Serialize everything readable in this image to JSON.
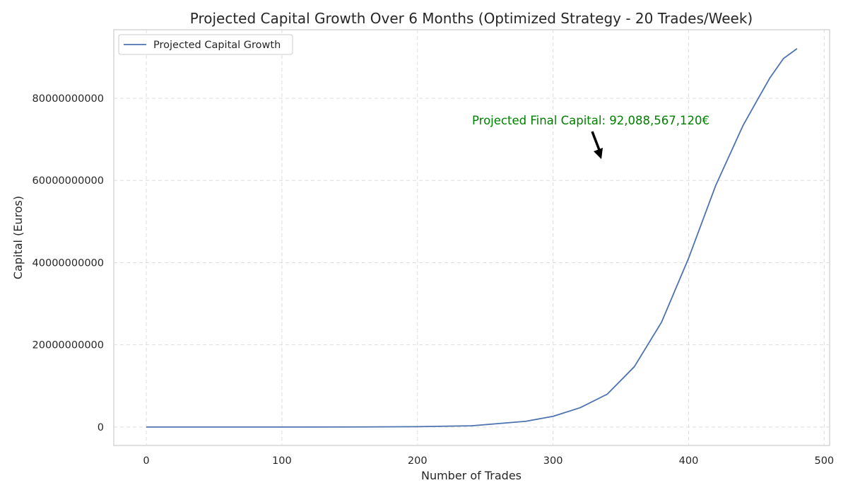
{
  "chart_data": {
    "type": "line",
    "title": "Projected Capital Growth Over 6 Months (Optimized Strategy - 20 Trades/Week)",
    "xlabel": "Number of Trades",
    "ylabel": "Capital (Euros)",
    "xlim": [
      -24,
      504
    ],
    "ylim": [
      -4500000000000,
      96700000000
    ],
    "x_ticks": [
      0,
      100,
      200,
      300,
      400,
      500
    ],
    "y_ticks": [
      0,
      20000000000,
      40000000000,
      60000000000,
      80000000000
    ],
    "y_tick_labels": [
      "0",
      "20000000000",
      "40000000000",
      "60000000000",
      "80000000000"
    ],
    "grid": true,
    "legend": {
      "placement": "upper-left",
      "entries": [
        "Projected Capital Growth"
      ]
    },
    "series": [
      {
        "name": "Projected Capital Growth",
        "color": "#4c72b0",
        "x": [
          0,
          40,
          80,
          120,
          160,
          200,
          240,
          280,
          300,
          320,
          340,
          360,
          380,
          400,
          420,
          440,
          450,
          460,
          470,
          480
        ],
        "y": [
          0,
          100000,
          500000,
          3000000,
          15000000,
          80000000,
          300000000,
          1400000000,
          2600000000,
          4700000000,
          8000000000,
          14700000000,
          25500000000,
          41100000000,
          58800000000,
          73300000000,
          79200000000,
          85000000000,
          89700000000,
          92088567120
        ]
      }
    ],
    "annotation": {
      "text": "Projected Final Capital: 92,088,567,120€",
      "color": "#008000",
      "xy": [
        335,
        65000000000
      ],
      "xytext": [
        240,
        74000000000
      ]
    }
  }
}
